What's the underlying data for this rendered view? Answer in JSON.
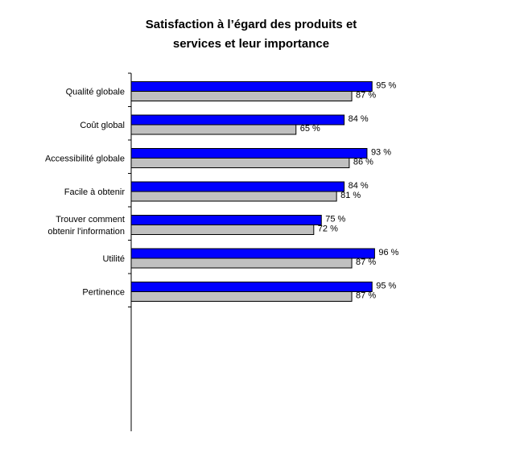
{
  "chart_data": {
    "type": "bar",
    "orientation": "horizontal",
    "title": [
      "Satisfaction à l’égard des produits et",
      "services et leur importance"
    ],
    "categories": [
      [
        "Qualité globale"
      ],
      [
        "Coût global"
      ],
      [
        "Accessibilité globale"
      ],
      [
        "Facile à obtenir"
      ],
      [
        "Trouver comment",
        "obtenir l'information"
      ],
      [
        "Utilité"
      ],
      [
        "Pertinence"
      ]
    ],
    "series": [
      {
        "color": "#0000ff",
        "values": [
          95,
          84,
          93,
          84,
          75,
          96,
          95
        ],
        "labels": [
          "95 %",
          "84 %",
          "93 %",
          "84 %",
          "75 %",
          "96 %",
          "95 %"
        ]
      },
      {
        "color": "#c0c0c0",
        "values": [
          87,
          65,
          86,
          81,
          72,
          87,
          87
        ],
        "labels": [
          "87 %",
          "65 %",
          "86 %",
          "81 %",
          "72 %",
          "87 %",
          "87 %"
        ]
      }
    ],
    "xlim": [
      0,
      100
    ],
    "grid": false,
    "legend": "none"
  }
}
